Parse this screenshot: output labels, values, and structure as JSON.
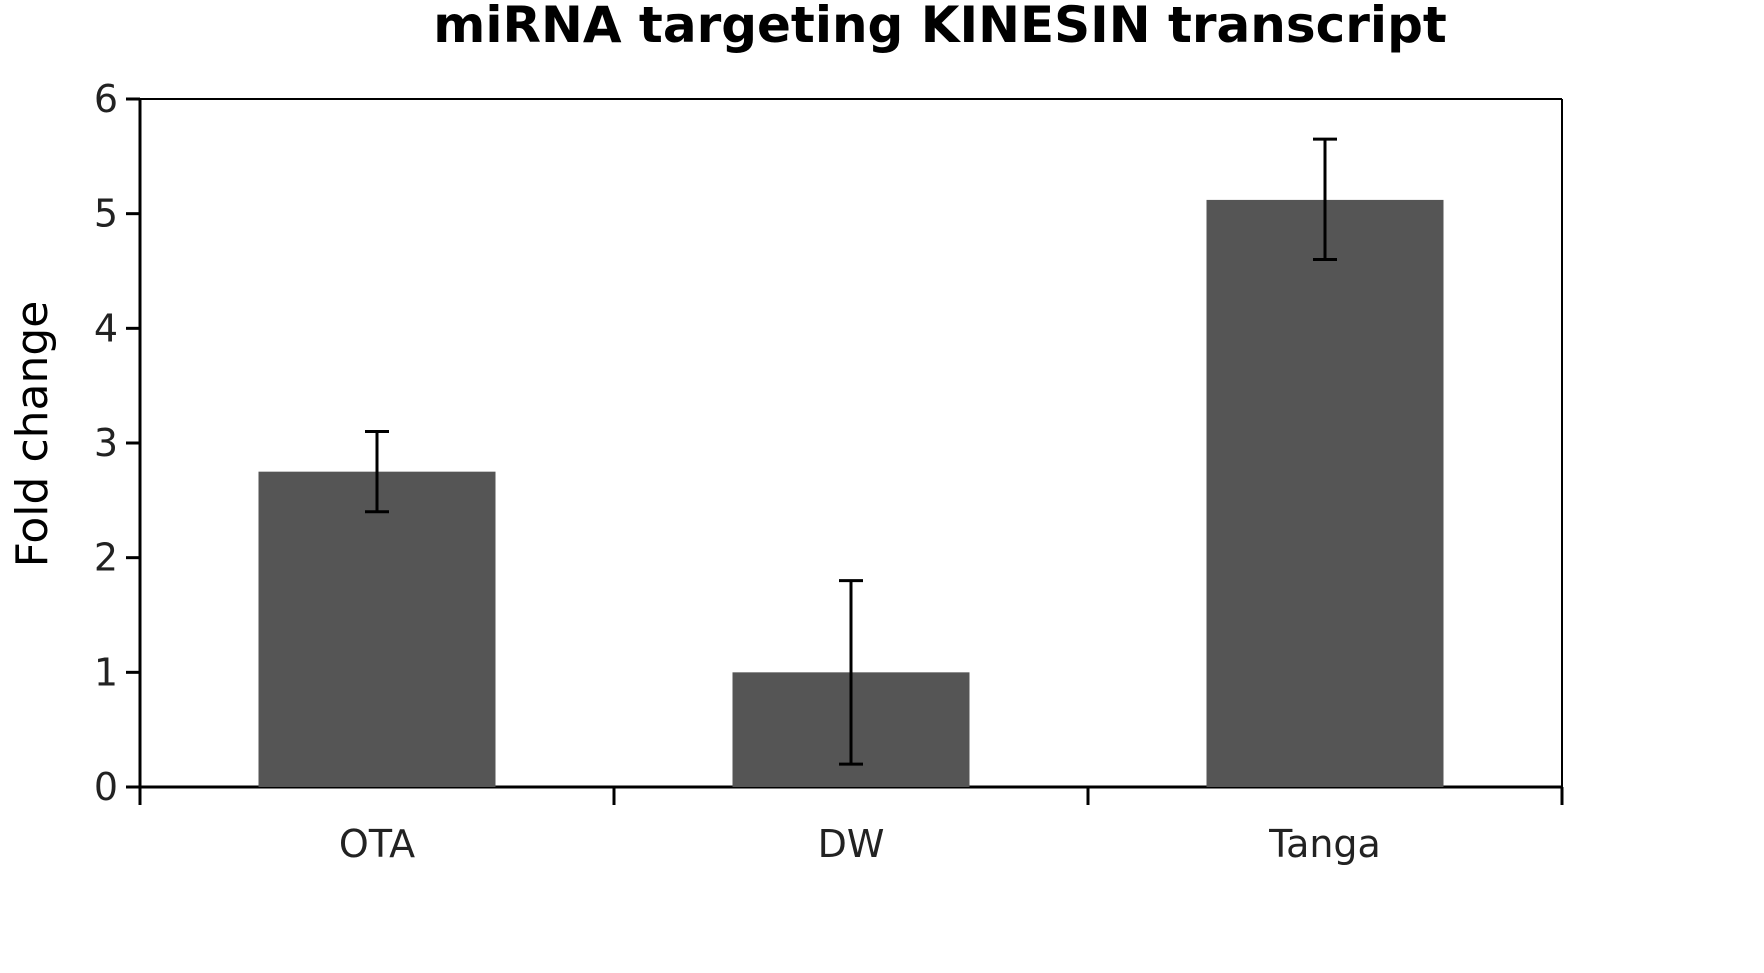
{
  "chart_data": {
    "type": "bar",
    "title": "miRNA targeting KINESIN transcript",
    "xlabel": "",
    "ylabel": "Fold change",
    "categories": [
      "OTA",
      "DW",
      "Tanga"
    ],
    "values": [
      2.75,
      1.0,
      5.12
    ],
    "error_low": [
      2.4,
      0.2,
      4.6
    ],
    "error_high": [
      3.1,
      1.8,
      5.65
    ],
    "ylim": [
      0,
      6
    ],
    "yticks": [
      "0",
      "1",
      "2",
      "3",
      "4",
      "5",
      "6"
    ],
    "grid": false,
    "legend": "none",
    "bar_color": "#555555"
  }
}
